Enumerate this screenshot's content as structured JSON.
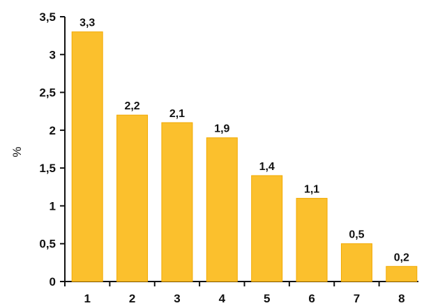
{
  "chart_data": {
    "type": "bar",
    "categories": [
      "1",
      "2",
      "3",
      "4",
      "5",
      "6",
      "7",
      "8"
    ],
    "values": [
      3.3,
      2.2,
      2.1,
      1.9,
      1.4,
      1.1,
      0.5,
      0.2
    ],
    "value_labels": [
      "3,3",
      "2,2",
      "2,1",
      "1,9",
      "1,4",
      "1,1",
      "0,5",
      "0,2"
    ],
    "title": "",
    "xlabel": "",
    "ylabel": "%",
    "ylim": [
      0,
      3.5
    ],
    "yticks": [
      0,
      0.5,
      1,
      1.5,
      2,
      2.5,
      3,
      3.5
    ],
    "ytick_labels": [
      "0",
      "0,5",
      "1",
      "1,5",
      "2",
      "2,5",
      "3",
      "3,5"
    ],
    "grid": false,
    "bar_color": "#FBC02D",
    "bar_edge_color": "#F2A900"
  }
}
